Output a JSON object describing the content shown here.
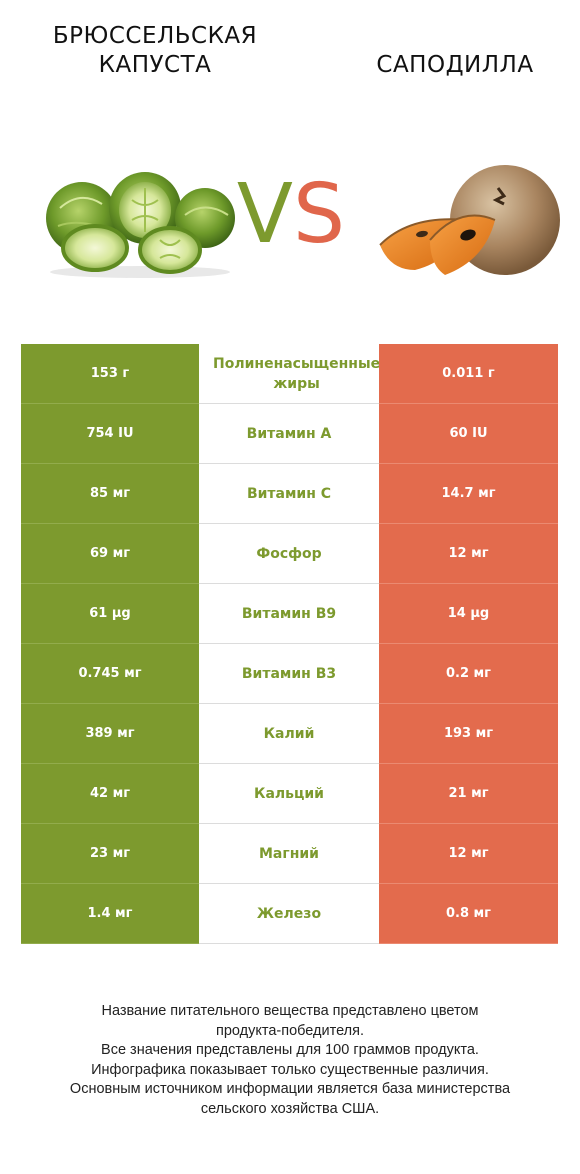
{
  "titles": {
    "left": "БРЮССЕЛЬСКАЯ\nКАПУСТА",
    "right": "САПОДИЛЛА"
  },
  "vs": {
    "v": "V",
    "s": "S"
  },
  "colors": {
    "left_winner": "#7d9a2e",
    "right_winner": "#e36b4d"
  },
  "icons": {
    "left": "brussels-sprouts-image",
    "right": "sapodilla-image"
  },
  "rows": [
    {
      "left": "153 г",
      "nutrient": "Полиненасыщенные жиры",
      "right": "0.011 г"
    },
    {
      "left": "754 IU",
      "nutrient": "Витамин A",
      "right": "60 IU"
    },
    {
      "left": "85 мг",
      "nutrient": "Витамин C",
      "right": "14.7 мг"
    },
    {
      "left": "69 мг",
      "nutrient": "Фосфор",
      "right": "12 мг"
    },
    {
      "left": "61 µg",
      "nutrient": "Витамин B9",
      "right": "14 µg"
    },
    {
      "left": "0.745 мг",
      "nutrient": "Витамин B3",
      "right": "0.2 мг"
    },
    {
      "left": "389 мг",
      "nutrient": "Калий",
      "right": "193 мг"
    },
    {
      "left": "42 мг",
      "nutrient": "Кальций",
      "right": "21 мг"
    },
    {
      "left": "23 мг",
      "nutrient": "Магний",
      "right": "12 мг"
    },
    {
      "left": "1.4 мг",
      "nutrient": "Железо",
      "right": "0.8 мг"
    }
  ],
  "footnote": [
    "Название питательного вещества представлено цветом",
    "продукта-победителя.",
    "Все значения представлены для 100 граммов продукта.",
    "Инфографика показывает только существенные различия.",
    "Основным источником информации является база министерства",
    "сельского хозяйства США."
  ]
}
